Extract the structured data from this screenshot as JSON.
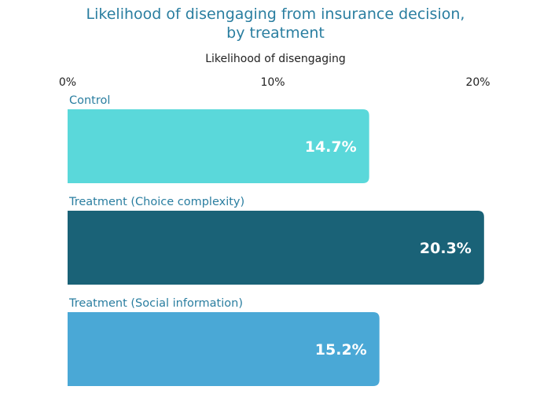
{
  "title_lines": [
    "Likelihood of disengaging from insurance decision,",
    "by treatment"
  ],
  "colors": {
    "title": "#2a7ea0",
    "category_label": "#2a7ea0",
    "axis_text": "#222222",
    "value_label": "#ffffff"
  },
  "chart_data": {
    "type": "bar",
    "orientation": "horizontal",
    "title": "Likelihood of disengaging from insurance decision, by treatment",
    "xlabel": "Likelihood of disengaging",
    "ylabel": "",
    "xlim": [
      0,
      20
    ],
    "x_ticks": [
      {
        "value": 0,
        "label": "0%"
      },
      {
        "value": 10,
        "label": "10%"
      },
      {
        "value": 20,
        "label": "20%"
      }
    ],
    "x_axis_position": "top",
    "grid": false,
    "legend": "none",
    "categories": [
      "Control",
      "Treatment (Choice complexity)",
      "Treatment (Social information)"
    ],
    "values": [
      14.7,
      20.3,
      15.2
    ],
    "value_labels": [
      "14.7%",
      "20.3%",
      "15.2%"
    ],
    "bar_colors": [
      "#5ad8da",
      "#1a6277",
      "#4aa8d6"
    ]
  }
}
